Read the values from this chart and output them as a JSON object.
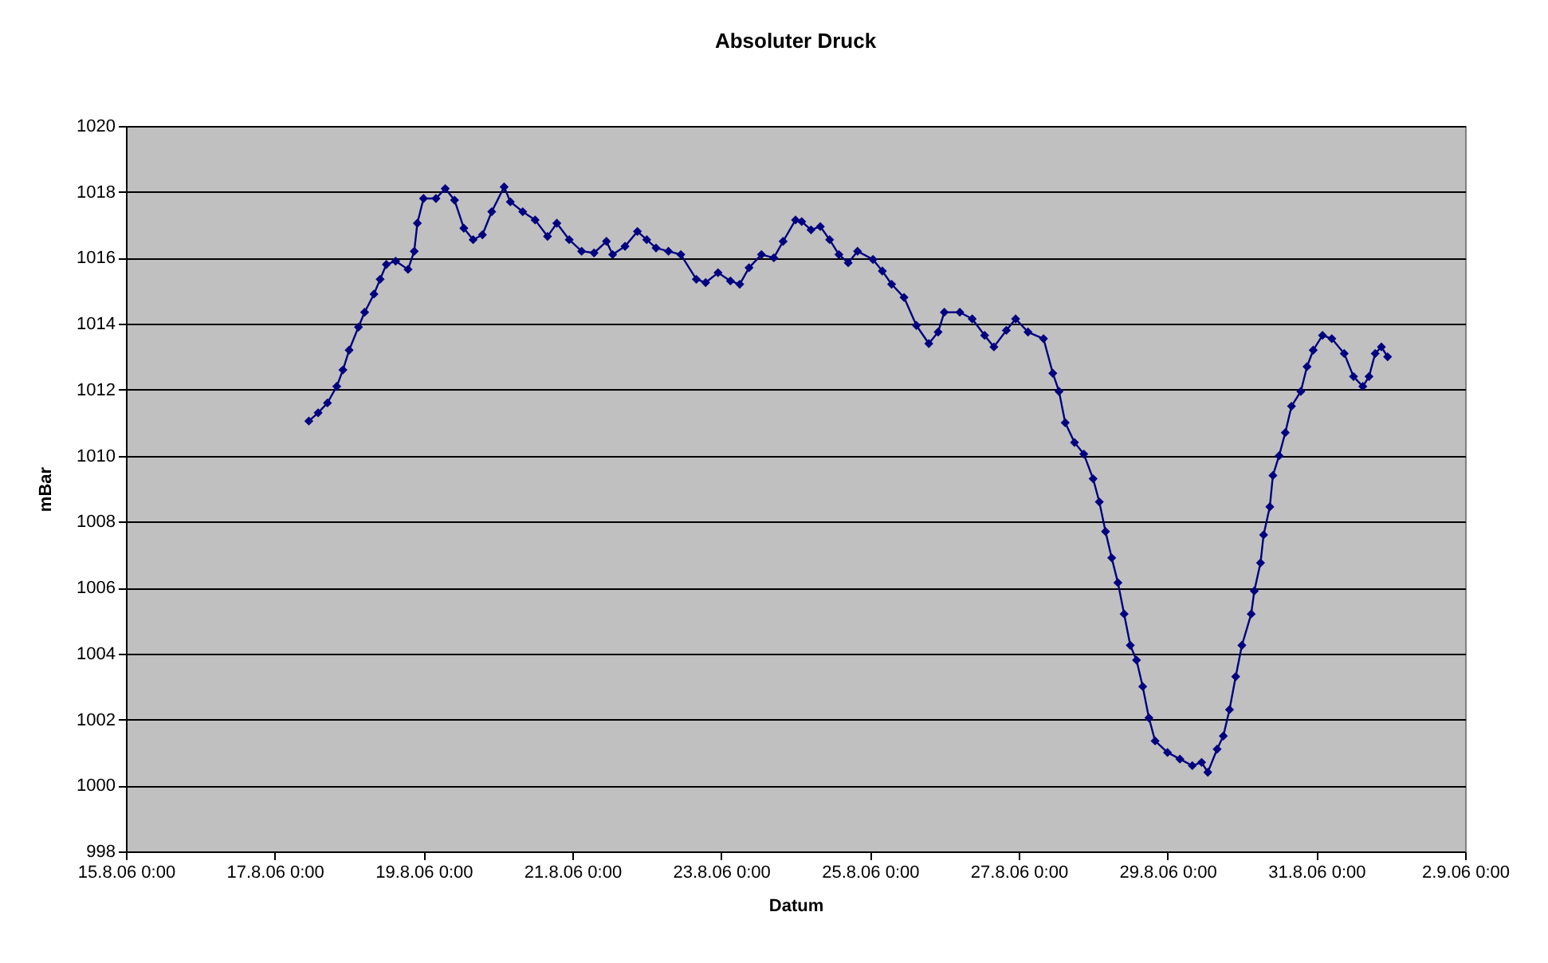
{
  "chart_data": {
    "type": "line",
    "title": "Absoluter Druck",
    "xlabel": "Datum",
    "ylabel": "mBar",
    "x": [
      "--08-17T11:00",
      "--08-17T14:00",
      "--08-17T17:00",
      "--08-17T20:00",
      "--08-17T22:00",
      "--08-18T00:00",
      "--08-18T03:00",
      "--08-18T05:00",
      "--08-18T08:00",
      "--08-18T10:00",
      "--08-18T12:00",
      "--08-18T15:00",
      "--08-18T19:00",
      "--08-18T21:00",
      "--08-18T22:00",
      "--08-19T00:00",
      "--08-19T04:00",
      "--08-19T07:00",
      "--08-19T10:00",
      "--08-19T13:00",
      "--08-19T16:00",
      "--08-19T19:00",
      "--08-19T22:00",
      "--08-20T02:00",
      "--08-20T04:00",
      "--08-20T08:00",
      "--08-20T12:00",
      "--08-20T16:00",
      "--08-20T19:00",
      "--08-20T23:00",
      "--08-21T03:00",
      "--08-21T07:00",
      "--08-21T11:00",
      "--08-21T13:00",
      "--08-21T17:00",
      "--08-21T21:00",
      "--08-22T00:00",
      "--08-22T03:00",
      "--08-22T07:00",
      "--08-22T11:00",
      "--08-22T16:00",
      "--08-22T19:00",
      "--08-22T23:00",
      "--08-23T03:00",
      "--08-23T06:00",
      "--08-23T09:00",
      "--08-23T13:00",
      "--08-23T17:00",
      "--08-23T20:00",
      "--08-24T00:00",
      "--08-24T02:00",
      "--08-24T05:00",
      "--08-24T08:00",
      "--08-24T11:00",
      "--08-24T14:00",
      "--08-24T17:00",
      "--08-24T20:00",
      "--08-25T01:00",
      "--08-25T04:00",
      "--08-25T07:00",
      "--08-25T11:00",
      "--08-25T15:00",
      "--08-25T19:00",
      "--08-25T22:00",
      "--08-26T00:00",
      "--08-26T05:00",
      "--08-26T09:00",
      "--08-26T13:00",
      "--08-26T16:00",
      "--08-26T20:00",
      "--08-26T23:00",
      "--08-27T03:00",
      "--08-27T08:00",
      "--08-27T11:00",
      "--08-27T13:00",
      "--08-27T15:00",
      "--08-27T18:00",
      "--08-27T21:00",
      "--08-28T00:00",
      "--08-28T02:00",
      "--08-28T04:00",
      "--08-28T06:00",
      "--08-28T08:00",
      "--08-28T10:00",
      "--08-28T12:00",
      "--08-28T14:00",
      "--08-28T16:00",
      "--08-28T18:00",
      "--08-28T20:00",
      "--08-29T00:00",
      "--08-29T04:00",
      "--08-29T08:00",
      "--08-29T11:00",
      "--08-29T13:00",
      "--08-29T16:00",
      "--08-29T18:00",
      "--08-29T20:00",
      "--08-29T22:00",
      "--08-30T00:00",
      "--08-30T03:00",
      "--08-30T04:00",
      "--08-30T06:00",
      "--08-30T07:00",
      "--08-30T09:00",
      "--08-30T10:00",
      "--08-30T12:00",
      "--08-30T14:00",
      "--08-30T16:00",
      "--08-30T19:00",
      "--08-30T21:00",
      "--08-30T23:00",
      "--08-31T02:00",
      "--08-31T05:00",
      "--08-31T09:00",
      "--08-31T12:00",
      "--08-31T15:00",
      "--08-31T17:00",
      "--08-31T19:00",
      "--08-31T21:00",
      "--08-31T23:00"
    ],
    "values": [
      1011.05,
      1011.3,
      1011.6,
      1012.1,
      1012.6,
      1013.2,
      1013.9,
      1014.35,
      1014.9,
      1015.35,
      1015.8,
      1015.9,
      1015.65,
      1016.2,
      1017.05,
      1017.8,
      1017.8,
      1018.1,
      1017.75,
      1016.9,
      1016.55,
      1016.7,
      1017.4,
      1018.15,
      1017.7,
      1017.4,
      1017.15,
      1016.65,
      1017.05,
      1016.55,
      1016.2,
      1016.15,
      1016.5,
      1016.1,
      1016.35,
      1016.8,
      1016.55,
      1016.3,
      1016.2,
      1016.1,
      1015.35,
      1015.25,
      1015.55,
      1015.3,
      1015.2,
      1015.7,
      1016.1,
      1016.0,
      1016.5,
      1017.15,
      1017.1,
      1016.85,
      1016.95,
      1016.55,
      1016.1,
      1015.85,
      1016.2,
      1015.95,
      1015.6,
      1015.2,
      1014.8,
      1013.95,
      1013.4,
      1013.75,
      1014.35,
      1014.35,
      1014.15,
      1013.65,
      1013.3,
      1013.8,
      1014.15,
      1013.75,
      1013.55,
      1012.5,
      1011.95,
      1011.0,
      1010.4,
      1010.05,
      1009.3,
      1008.6,
      1007.7,
      1006.9,
      1006.15,
      1005.2,
      1004.25,
      1003.8,
      1003.0,
      1002.05,
      1001.35,
      1001.0,
      1000.8,
      1000.6,
      1000.7,
      1000.4,
      1001.1,
      1001.5,
      1002.3,
      1003.3,
      1004.25,
      1005.2,
      1005.9,
      1006.75,
      1007.6,
      1008.45,
      1009.4,
      1010.0,
      1010.7,
      1011.5,
      1011.95,
      1012.7,
      1013.2,
      1013.65,
      1013.55,
      1013.1,
      1012.4,
      1012.1,
      1012.4,
      1013.1,
      1013.3,
      1013.0
    ],
    "color": "#000080",
    "marker": "diamond",
    "grid": "y",
    "xlim": [
      "--08-15T00:00",
      "--09-02T00:00"
    ],
    "xticks": [
      {
        "value": "--08-15T00:00",
        "label": "15.8.06 0:00"
      },
      {
        "value": "--08-17T00:00",
        "label": "17.8.06 0:00"
      },
      {
        "value": "--08-19T00:00",
        "label": "19.8.06 0:00"
      },
      {
        "value": "--08-21T00:00",
        "label": "21.8.06 0:00"
      },
      {
        "value": "--08-23T00:00",
        "label": "23.8.06 0:00"
      },
      {
        "value": "--08-25T00:00",
        "label": "25.8.06 0:00"
      },
      {
        "value": "--08-27T00:00",
        "label": "27.8.06 0:00"
      },
      {
        "value": "--08-29T00:00",
        "label": "29.8.06 0:00"
      },
      {
        "value": "--08-31T00:00",
        "label": "31.8.06 0:00"
      },
      {
        "value": "--09-02T00:00",
        "label": "2.9.06 0:00"
      }
    ],
    "ylim": [
      998,
      1020
    ],
    "yticks": [
      998,
      1000,
      1002,
      1004,
      1006,
      1008,
      1010,
      1012,
      1014,
      1016,
      1018,
      1020
    ]
  }
}
